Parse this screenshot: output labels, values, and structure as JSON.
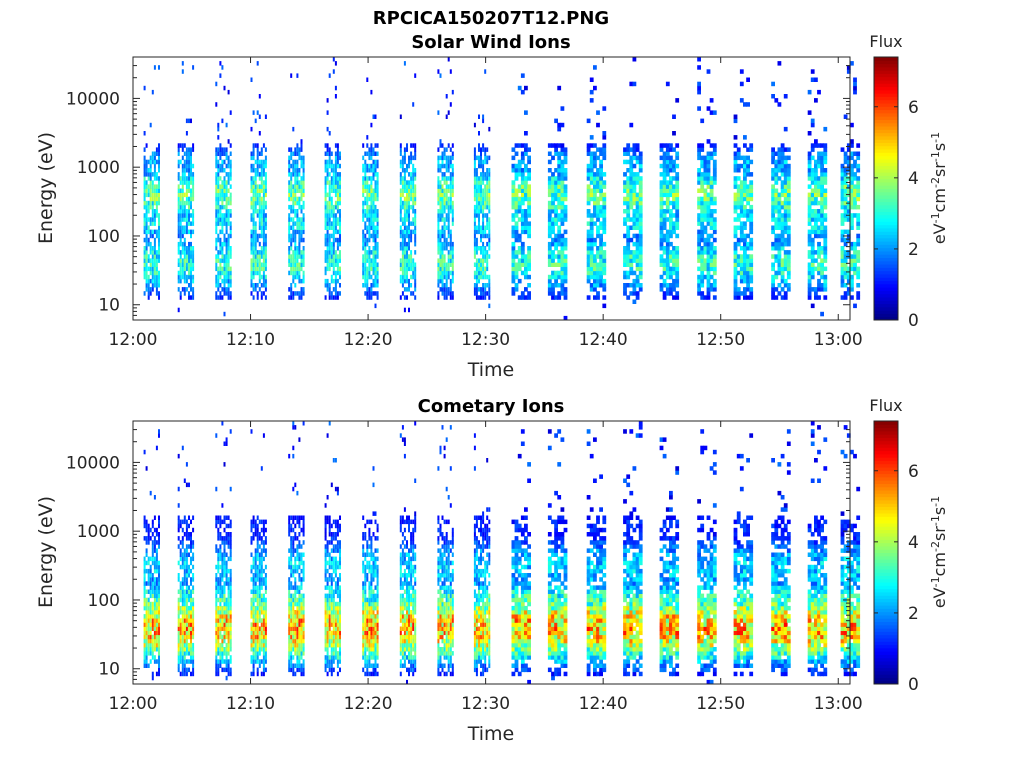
{
  "figure_title": "RPCICA150207T12.PNG",
  "chart_data": [
    {
      "type": "heatmap",
      "title": "Solar Wind Ions",
      "xlabel": "Time",
      "ylabel": "Energy (eV)",
      "x_ticks": [
        "12:00",
        "12:10",
        "12:20",
        "12:30",
        "12:40",
        "12:50",
        "13:00"
      ],
      "x_range_minutes": [
        0,
        61
      ],
      "y_scale": "log",
      "y_ticks": [
        10,
        100,
        1000,
        10000
      ],
      "y_tick_labels": [
        "10",
        "100",
        "1000",
        "10000"
      ],
      "y_range": [
        6,
        40000
      ],
      "colorbar": {
        "label_top": "Flux",
        "ticks": [
          0,
          2,
          4,
          6
        ],
        "range": [
          0,
          7.4
        ],
        "colormap": "jet"
      },
      "pattern": {
        "pulse_start_minutes": [
          0.9,
          3.8,
          7.0,
          10.0,
          13.2,
          16.3,
          19.5,
          22.7,
          25.9,
          29.0,
          32.2,
          35.3,
          38.6,
          41.7,
          44.8,
          48.0,
          51.1,
          54.3,
          57.4,
          60.2
        ],
        "bands": [
          {
            "energy": 400,
            "flux": 3.4,
            "spread": 0.25
          },
          {
            "energy": 160,
            "flux": 2.6,
            "spread": 0.15
          },
          {
            "energy": 40,
            "flux": 3.0,
            "spread": 0.3
          },
          {
            "energy": 1100,
            "flux": 2.2,
            "spread": 0.1
          }
        ]
      }
    },
    {
      "type": "heatmap",
      "title": "Cometary Ions",
      "xlabel": "Time",
      "ylabel": "Energy (eV)",
      "x_ticks": [
        "12:00",
        "12:10",
        "12:20",
        "12:30",
        "12:40",
        "12:50",
        "13:00"
      ],
      "x_range_minutes": [
        0,
        61
      ],
      "y_scale": "log",
      "y_ticks": [
        10,
        100,
        1000,
        10000
      ],
      "y_tick_labels": [
        "10",
        "100",
        "1000",
        "10000"
      ],
      "y_range": [
        6,
        40000
      ],
      "colorbar": {
        "label_top": "Flux",
        "ticks": [
          0,
          2,
          4,
          6
        ],
        "range": [
          0,
          7.4
        ],
        "colormap": "jet"
      },
      "pattern": {
        "pulse_start_minutes": [
          0.9,
          3.8,
          7.0,
          10.0,
          13.2,
          16.3,
          19.5,
          22.7,
          25.9,
          29.0,
          32.2,
          35.3,
          38.6,
          41.7,
          44.8,
          48.0,
          51.1,
          54.3,
          57.4,
          60.2
        ],
        "bands": [
          {
            "energy": 40,
            "flux": 5.0,
            "spread": 0.35
          },
          {
            "energy": 90,
            "flux": 3.2,
            "spread": 0.2
          },
          {
            "energy": 300,
            "flux": 2.4,
            "spread": 0.3
          },
          {
            "energy": 1200,
            "flux": 1.2,
            "spread": 0.1
          }
        ]
      }
    }
  ]
}
